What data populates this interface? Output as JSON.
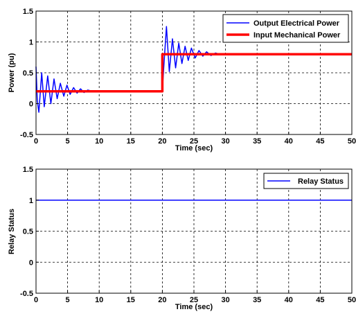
{
  "chart_data": [
    {
      "type": "line",
      "xlabel": "Time (sec)",
      "ylabel": "Power (pu)",
      "xlim": [
        0,
        50
      ],
      "ylim": [
        -0.5,
        1.5
      ],
      "xticks": [
        "0",
        "5",
        "10",
        "15",
        "20",
        "25",
        "30",
        "35",
        "40",
        "45",
        "50"
      ],
      "yticks": [
        "-0.5",
        "0",
        "0.5",
        "1",
        "1.5"
      ],
      "grid": true,
      "legend_position": "top-right",
      "series": [
        {
          "name": "Output Electrical Power",
          "color": "#0000ff",
          "x": [
            0,
            0.2,
            0.45,
            0.9,
            1.3,
            1.85,
            2.35,
            2.85,
            3.35,
            3.85,
            4.4,
            4.9,
            5.4,
            5.95,
            6.5,
            7.05,
            7.6,
            8.2,
            9,
            10,
            20,
            20.2,
            20.65,
            21.1,
            21.6,
            22.1,
            22.6,
            23.1,
            23.6,
            24.1,
            24.6,
            25.2,
            25.8,
            26.4,
            27,
            27.7,
            28.4,
            29.2,
            30,
            50
          ],
          "y": [
            0.6,
            0.05,
            -0.14,
            0.5,
            -0.05,
            0.45,
            0.0,
            0.4,
            0.08,
            0.33,
            0.12,
            0.3,
            0.15,
            0.26,
            0.17,
            0.24,
            0.18,
            0.22,
            0.2,
            0.2,
            0.2,
            0.55,
            1.25,
            0.52,
            1.05,
            0.58,
            0.98,
            0.65,
            0.93,
            0.7,
            0.9,
            0.74,
            0.86,
            0.77,
            0.84,
            0.78,
            0.82,
            0.8,
            0.8,
            0.8
          ]
        },
        {
          "name": "Input Mechanical Power",
          "color": "#ff0000",
          "x": [
            0,
            20,
            20,
            50
          ],
          "y": [
            0.2,
            0.2,
            0.8,
            0.8
          ]
        }
      ]
    },
    {
      "type": "line",
      "xlabel": "Time (sec)",
      "ylabel": "Relay Status",
      "xlim": [
        0,
        50
      ],
      "ylim": [
        -0.5,
        1.5
      ],
      "xticks": [
        "0",
        "5",
        "10",
        "15",
        "20",
        "25",
        "30",
        "35",
        "40",
        "45",
        "50"
      ],
      "yticks": [
        "-0.5",
        "0",
        "0.5",
        "1",
        "1.5"
      ],
      "grid": true,
      "legend_position": "top-right",
      "series": [
        {
          "name": "Relay Status",
          "color": "#0000ff",
          "x": [
            0,
            50
          ],
          "y": [
            1,
            1
          ]
        }
      ]
    }
  ]
}
